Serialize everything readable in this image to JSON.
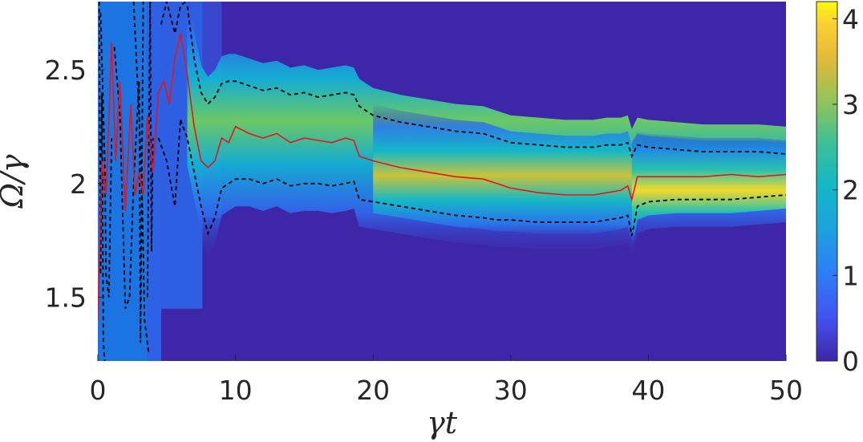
{
  "chart_data": {
    "type": "heatmap",
    "xlabel": "γt",
    "ylabel": "Ω/γ",
    "xlim": [
      0,
      50
    ],
    "ylim": [
      1.22,
      2.8
    ],
    "x_ticks": [
      "0",
      "10",
      "20",
      "30",
      "40",
      "50"
    ],
    "x_tick_values": [
      0,
      10,
      20,
      30,
      40,
      50
    ],
    "y_ticks": [
      "1.5",
      "2",
      "2.5"
    ],
    "y_tick_values": [
      1.5,
      2.0,
      2.5
    ],
    "colorbar": {
      "range": [
        0,
        4.2
      ],
      "ticks": [
        "0",
        "1",
        "2",
        "3",
        "4"
      ],
      "tick_values": [
        0,
        1,
        2,
        3,
        4
      ],
      "colormap": "parula"
    },
    "grid": false,
    "colors": {
      "background": "#3e26a8",
      "estimate_line": "#e8141a",
      "bound_lines": "#000000"
    },
    "series": [
      {
        "style": "solid",
        "x": [
          0,
          0.3,
          0.6,
          1.0,
          1.3,
          1.6,
          2.0,
          2.4,
          2.7,
          3.0,
          3.3,
          3.6,
          4.0,
          4.4,
          4.8,
          5.2,
          5.6,
          6.0,
          6.5,
          7.0,
          7.5,
          8.0,
          8.5,
          9.0,
          9.5,
          10,
          11,
          12,
          13,
          14,
          15,
          16,
          17,
          18,
          18.6,
          19,
          20,
          22,
          24,
          26,
          28,
          29,
          30,
          32,
          34,
          36,
          37,
          38,
          38.5,
          38.8,
          39.2,
          40,
          42,
          44,
          46,
          48,
          50
        ],
        "y": [
          1.4,
          2.1,
          1.95,
          2.62,
          2.1,
          2.45,
          1.88,
          2.35,
          1.95,
          2.05,
          1.95,
          2.3,
          2.05,
          2.4,
          2.45,
          2.35,
          2.55,
          2.66,
          2.48,
          2.25,
          2.1,
          2.07,
          2.1,
          2.2,
          2.18,
          2.25,
          2.22,
          2.2,
          2.22,
          2.18,
          2.2,
          2.19,
          2.18,
          2.2,
          2.19,
          2.12,
          2.1,
          2.07,
          2.05,
          2.03,
          2.02,
          2.0,
          1.98,
          1.96,
          1.95,
          1.95,
          1.96,
          1.97,
          1.99,
          1.93,
          2.03,
          2.03,
          2.03,
          2.03,
          2.04,
          2.03,
          2.04
        ]
      },
      {
        "style": "dashed",
        "x": [
          6.5,
          7.0,
          7.5,
          8.0,
          8.5,
          9.0,
          9.5,
          10,
          11,
          12,
          13,
          14,
          15,
          16,
          17,
          18,
          18.6,
          19,
          20,
          22,
          24,
          26,
          28,
          29,
          30,
          32,
          34,
          36,
          37,
          38,
          38.5,
          38.8,
          39.2,
          40,
          42,
          44,
          46,
          48,
          50
        ],
        "y": [
          2.78,
          2.55,
          2.4,
          2.35,
          2.38,
          2.44,
          2.45,
          2.45,
          2.43,
          2.41,
          2.42,
          2.39,
          2.4,
          2.38,
          2.39,
          2.4,
          2.39,
          2.34,
          2.3,
          2.27,
          2.25,
          2.23,
          2.22,
          2.2,
          2.18,
          2.17,
          2.16,
          2.16,
          2.17,
          2.17,
          2.18,
          2.12,
          2.17,
          2.16,
          2.15,
          2.14,
          2.14,
          2.14,
          2.13
        ]
      },
      {
        "style": "dashed",
        "x": [
          6.0,
          6.5,
          7.0,
          7.5,
          8.0,
          8.5,
          9.0,
          9.5,
          10,
          11,
          12,
          13,
          14,
          15,
          16,
          17,
          18,
          18.6,
          19,
          20,
          22,
          24,
          26,
          28,
          29,
          30,
          32,
          34,
          36,
          37,
          38,
          38.5,
          38.8,
          39.2,
          40,
          42,
          44,
          46,
          48,
          50
        ],
        "y": [
          2.28,
          2.2,
          2.05,
          1.9,
          1.78,
          1.85,
          1.98,
          2.0,
          2.02,
          2.02,
          2.0,
          2.02,
          1.99,
          2.0,
          2.0,
          1.99,
          2.0,
          2.01,
          1.93,
          1.92,
          1.9,
          1.88,
          1.86,
          1.85,
          1.84,
          1.84,
          1.83,
          1.83,
          1.83,
          1.84,
          1.85,
          1.86,
          1.77,
          1.9,
          1.92,
          1.93,
          1.93,
          1.93,
          1.94,
          1.95
        ]
      }
    ]
  }
}
